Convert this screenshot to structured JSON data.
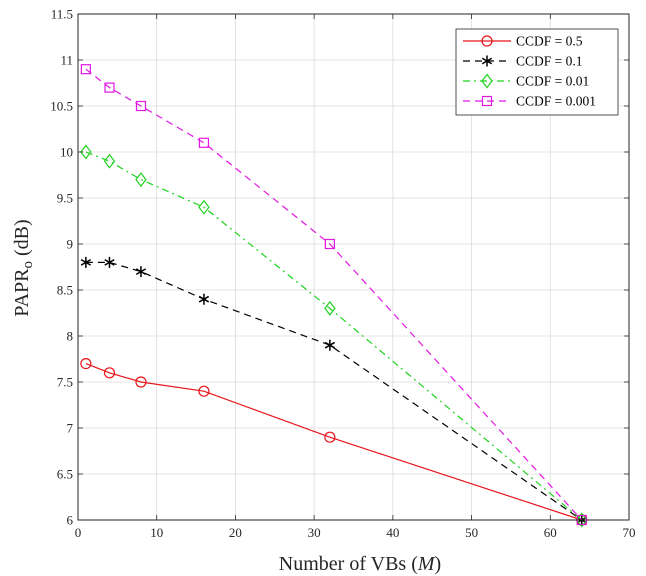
{
  "chart_data": {
    "type": "line",
    "xlabel": {
      "prefix": "Number of VBs (",
      "var": "M",
      "suffix": ")"
    },
    "ylabel": {
      "main": "PAPR",
      "sub": "o",
      "suffix": " (dB)"
    },
    "xlim": [
      0,
      70
    ],
    "ylim": [
      6,
      11.5
    ],
    "xticks": [
      0,
      10,
      20,
      30,
      40,
      50,
      60,
      70
    ],
    "yticks": [
      "6",
      "6.5",
      "7",
      "7.5",
      "8",
      "8.5",
      "9",
      "9.5",
      "10",
      "10.5",
      "11",
      "11.5"
    ],
    "grid": true,
    "legend_position": "top-right",
    "x": [
      1,
      4,
      8,
      16,
      32,
      64
    ],
    "series": [
      {
        "name": "CCDF = 0.5",
        "values": [
          7.7,
          7.6,
          7.5,
          7.4,
          6.9,
          6.0
        ],
        "color": "#e8151b",
        "dash": "solid",
        "marker": "circle"
      },
      {
        "name": "CCDF = 0.1",
        "values": [
          8.8,
          8.8,
          8.7,
          8.4,
          7.9,
          6.0
        ],
        "color": "#000000",
        "dash": "dashed",
        "marker": "asterisk"
      },
      {
        "name": "CCDF = 0.01",
        "values": [
          10.0,
          9.9,
          9.7,
          9.4,
          8.3,
          6.0
        ],
        "color": "#1fd31f",
        "dash": "dashdot",
        "marker": "diamond"
      },
      {
        "name": "CCDF = 0.001",
        "values": [
          10.9,
          10.7,
          10.5,
          10.1,
          9.0,
          6.0
        ],
        "color": "#e316e3",
        "dash": "dashed",
        "marker": "square"
      }
    ]
  }
}
